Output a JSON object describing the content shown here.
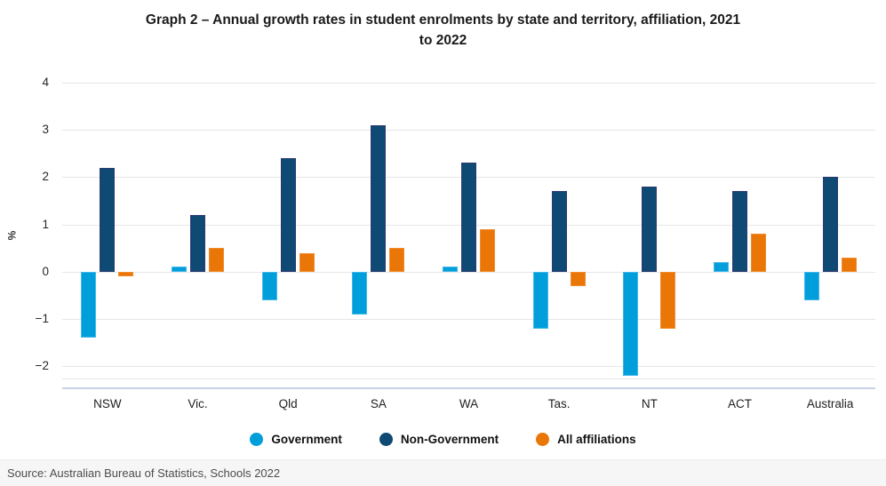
{
  "header": {
    "title_lines": [
      "Graph 2 – Annual growth rates in student enrolments by state and territory, affiliation, 2021",
      "to 2022"
    ]
  },
  "chart_data": {
    "type": "bar",
    "title": "Graph 2 – Annual growth rates in student enrolments by state and territory, affiliation, 2021 to 2022",
    "xlabel": "",
    "ylabel": "%",
    "categories": [
      "NSW",
      "Vic.",
      "Qld",
      "SA",
      "WA",
      "Tas.",
      "NT",
      "ACT",
      "Australia"
    ],
    "series": [
      {
        "name": "Government",
        "color": "#009fdb",
        "values": [
          -1.4,
          0.1,
          -0.6,
          -0.9,
          0.1,
          -1.2,
          -2.2,
          0.2,
          -0.6
        ]
      },
      {
        "name": "Non-Government",
        "color": "#0e4a73",
        "values": [
          2.2,
          1.2,
          2.4,
          3.1,
          2.3,
          1.7,
          1.8,
          1.7,
          2.0
        ]
      },
      {
        "name": "All affiliations",
        "color": "#e97606",
        "values": [
          -0.1,
          0.5,
          0.4,
          0.5,
          0.9,
          -0.3,
          -1.2,
          0.8,
          0.3
        ]
      }
    ],
    "yticks": [
      {
        "label": "4",
        "value": 4
      },
      {
        "label": "3",
        "value": 3
      },
      {
        "label": "2",
        "value": 2
      },
      {
        "label": "1",
        "value": 1
      },
      {
        "label": "0",
        "value": 0
      },
      {
        "label": "−1",
        "value": -1
      },
      {
        "label": "−2",
        "value": -2
      }
    ],
    "ylim": [
      -2.28,
      4
    ],
    "grid": true,
    "legend_position": "bottom"
  },
  "footer": {
    "source": "Source: Australian Bureau of Statistics, Schools 2022"
  }
}
